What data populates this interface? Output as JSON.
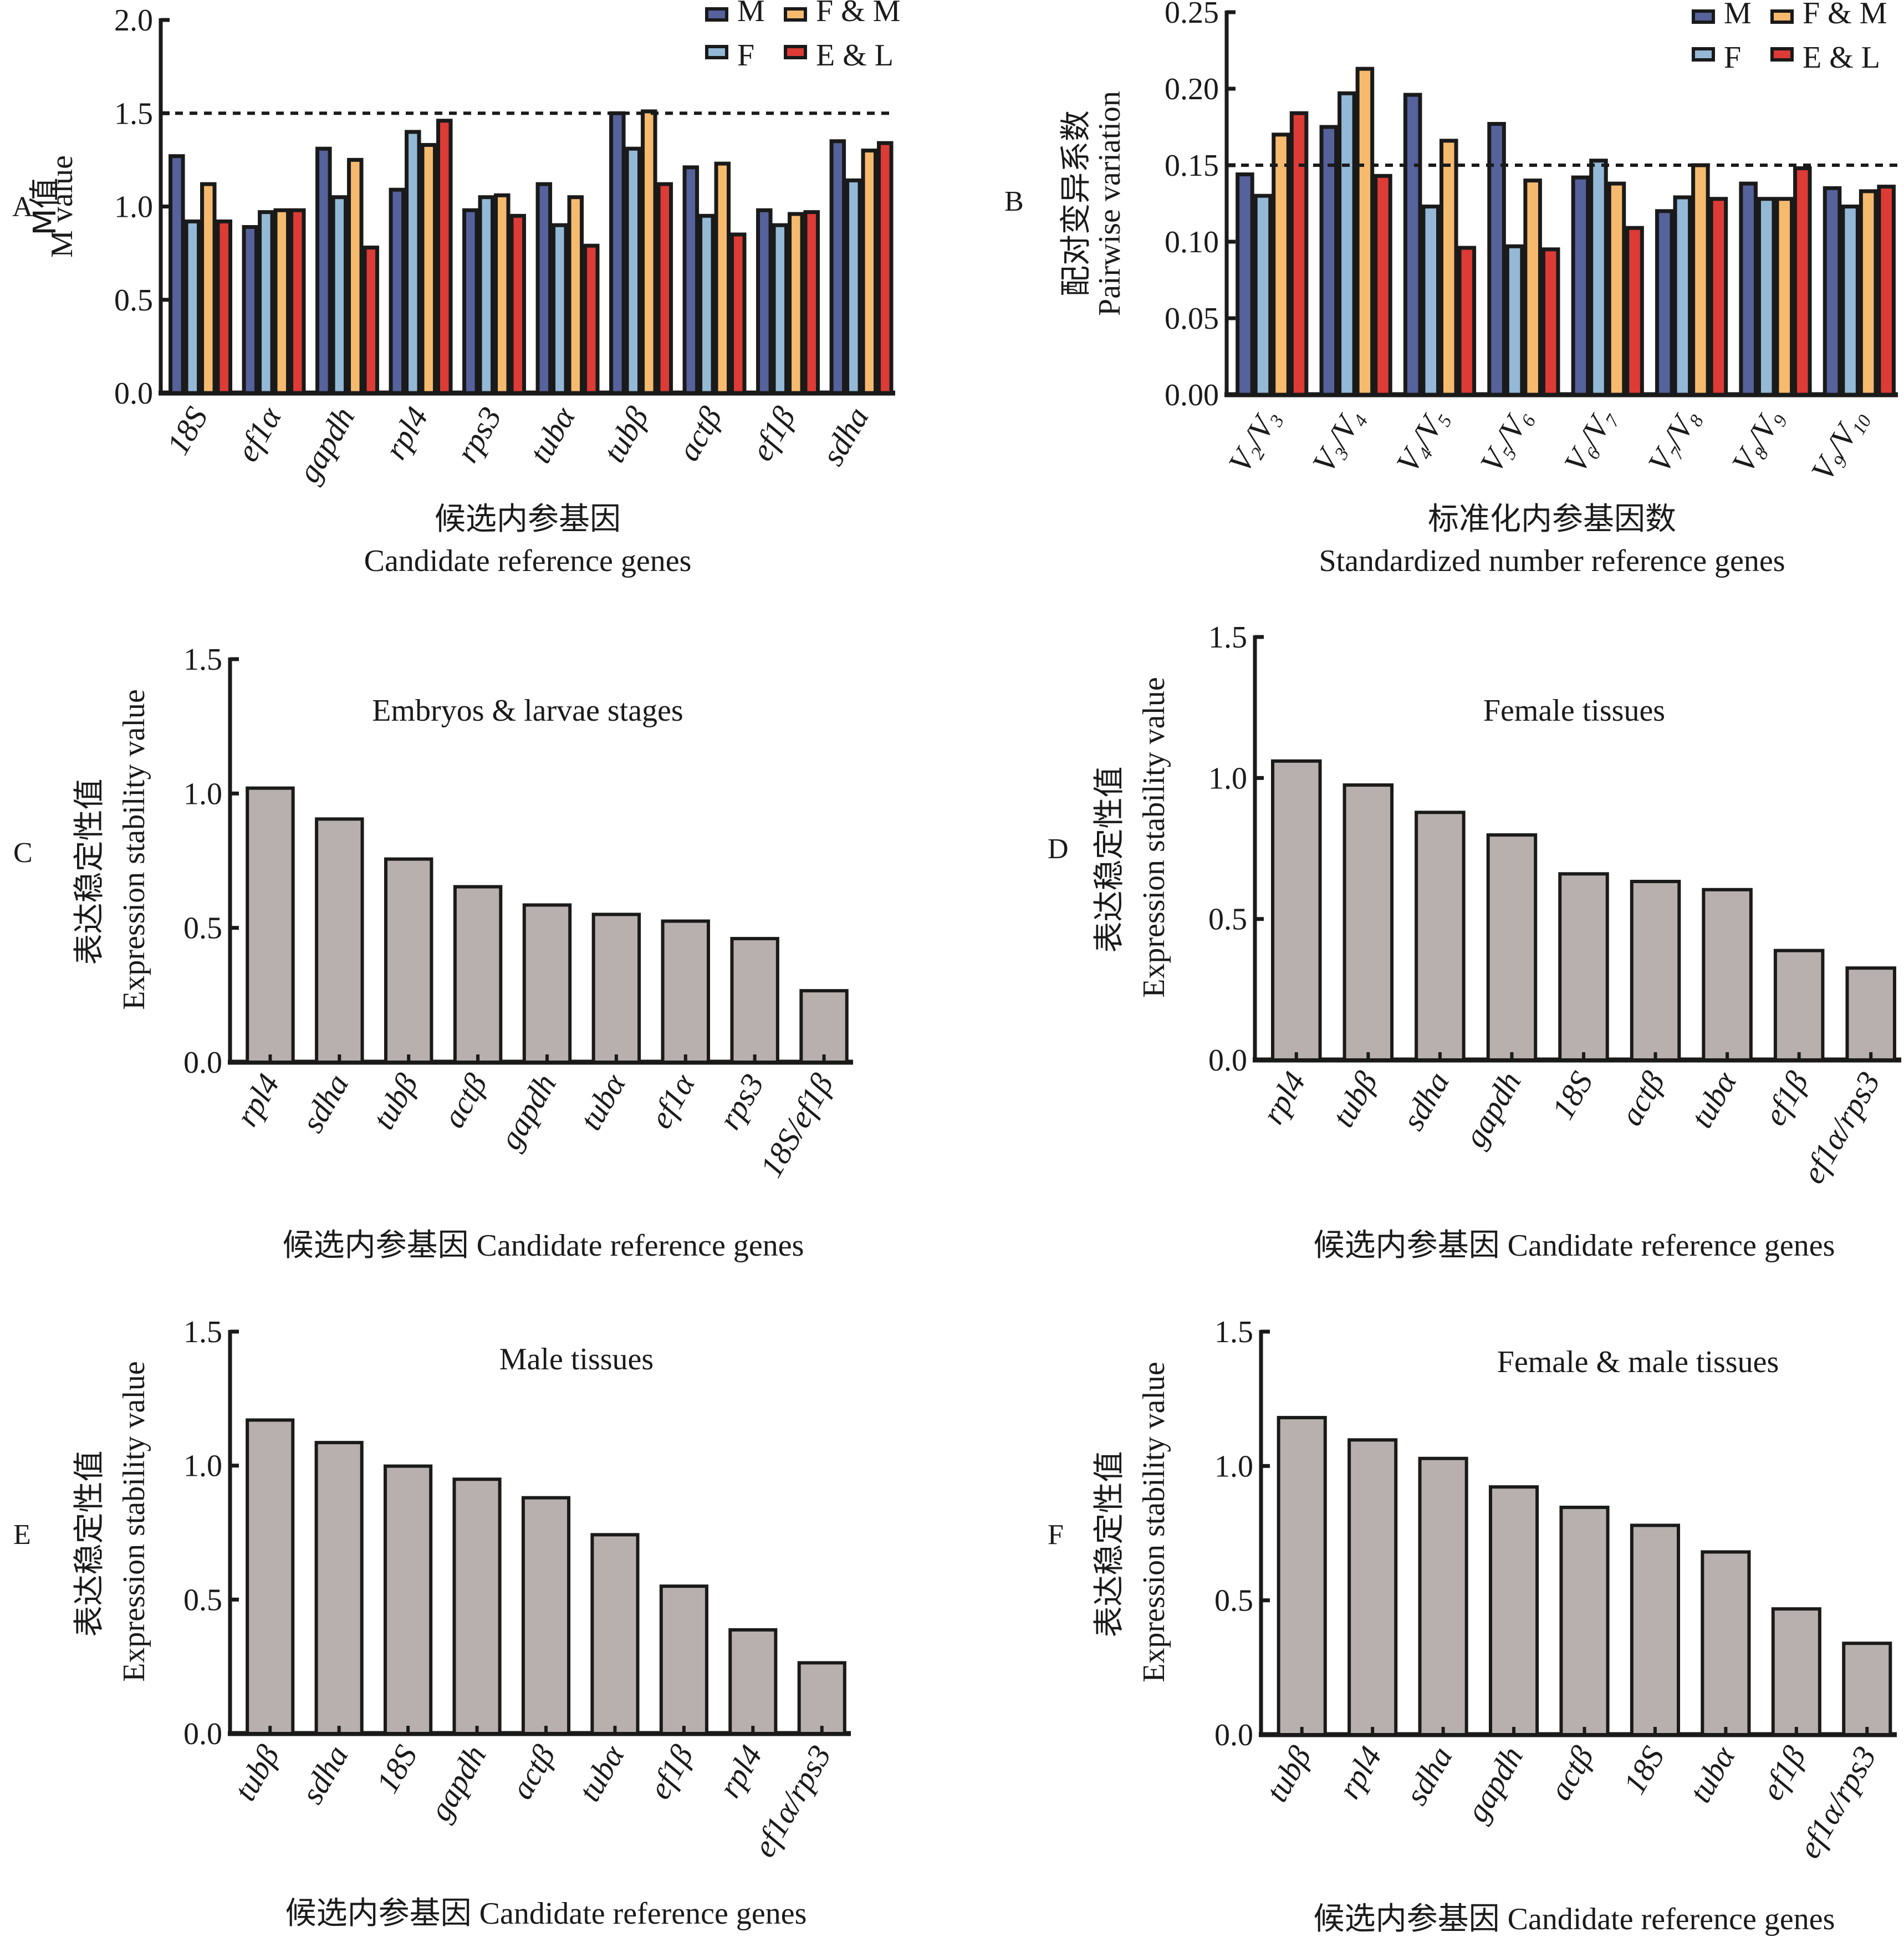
{
  "colors": {
    "M": "#56629c",
    "F": "#93b9d6",
    "F&M": "#f6ba6f",
    "E&L": "#dd3b36",
    "gray_bar": "#b8b0ae",
    "outline": "#1a1a1a"
  },
  "chart_data": [
    {
      "id": "A",
      "panel_letter": "A",
      "type": "bar",
      "grouped": true,
      "title": "",
      "ylabel_cn": "M值",
      "ylabel_en": "M value",
      "xlabel_cn": "候选内参基因",
      "xlabel_en": "Candidate reference genes",
      "ylim": [
        0,
        2.0
      ],
      "yticks": [
        0.0,
        0.5,
        1.0,
        1.5,
        2.0
      ],
      "ytick_labels": [
        "0.0",
        "0.5",
        "1.0",
        "1.5",
        "2.0"
      ],
      "threshold": 1.5,
      "legend": [
        "M",
        "F",
        "F & M",
        "E & L"
      ],
      "legend_position": "top-right",
      "categories": [
        "18S",
        "ef1α",
        "gapdh",
        "rpl4",
        "rps3",
        "tubα",
        "tubβ",
        "actβ",
        "ef1β",
        "sdha"
      ],
      "series": [
        {
          "name": "M",
          "key": "M",
          "values": [
            1.27,
            0.89,
            1.31,
            1.09,
            0.98,
            1.12,
            1.5,
            1.21,
            0.98,
            1.35
          ]
        },
        {
          "name": "F",
          "key": "F",
          "values": [
            0.92,
            0.97,
            1.05,
            1.4,
            1.05,
            0.9,
            1.31,
            0.95,
            0.9,
            1.14
          ]
        },
        {
          "name": "F & M",
          "key": "F&M",
          "values": [
            1.12,
            0.98,
            1.25,
            1.33,
            1.06,
            1.05,
            1.51,
            1.23,
            0.96,
            1.3
          ]
        },
        {
          "name": "E & L",
          "key": "E&L",
          "values": [
            0.92,
            0.98,
            0.78,
            1.46,
            0.95,
            0.79,
            1.12,
            0.85,
            0.97,
            1.34
          ]
        }
      ]
    },
    {
      "id": "B",
      "panel_letter": "B",
      "type": "bar",
      "grouped": true,
      "title": "",
      "ylabel_cn": "配对变异系数",
      "ylabel_en": "Pairwise variation",
      "xlabel_cn": "标准化内参基因数",
      "xlabel_en": "Standardized number reference genes",
      "ylim": [
        0,
        0.25
      ],
      "yticks": [
        0.0,
        0.05,
        0.1,
        0.15,
        0.2,
        0.25
      ],
      "ytick_labels": [
        "0.00",
        "0.05",
        "0.10",
        "0.15",
        "0.20",
        "0.25"
      ],
      "threshold": 0.15,
      "legend": [
        "M",
        "F",
        "F & M",
        "E & L"
      ],
      "legend_position": "top-right",
      "categories": [
        "V2/V3",
        "V3/V4",
        "V4/V5",
        "V5/V6",
        "V6/V7",
        "V7/V8",
        "V8/V9",
        "V9/V10"
      ],
      "category_parts": [
        [
          "2",
          "3"
        ],
        [
          "3",
          "4"
        ],
        [
          "4",
          "5"
        ],
        [
          "5",
          "6"
        ],
        [
          "6",
          "7"
        ],
        [
          "7",
          "8"
        ],
        [
          "8",
          "9"
        ],
        [
          "9",
          "10"
        ]
      ],
      "series": [
        {
          "name": "M",
          "key": "M",
          "values": [
            0.144,
            0.175,
            0.196,
            0.177,
            0.142,
            0.12,
            0.138,
            0.135
          ]
        },
        {
          "name": "F",
          "key": "F",
          "values": [
            0.13,
            0.197,
            0.123,
            0.097,
            0.153,
            0.129,
            0.128,
            0.123
          ]
        },
        {
          "name": "F & M",
          "key": "F&M",
          "values": [
            0.17,
            0.213,
            0.166,
            0.14,
            0.138,
            0.15,
            0.128,
            0.133
          ]
        },
        {
          "name": "E & L",
          "key": "E&L",
          "values": [
            0.184,
            0.143,
            0.096,
            0.095,
            0.109,
            0.128,
            0.148,
            0.136
          ]
        }
      ]
    },
    {
      "id": "C",
      "panel_letter": "C",
      "type": "bar",
      "title": "Embryos & larvae stages",
      "ylabel_cn": "表达稳定性值",
      "ylabel_en": "Expression stability value",
      "xlabel": "候选内参基因  Candidate reference genes",
      "ylim": [
        0,
        1.5
      ],
      "yticks": [
        0.0,
        0.5,
        1.0,
        1.5
      ],
      "ytick_labels": [
        "0.0",
        "0.5",
        "1.0",
        "1.5"
      ],
      "categories": [
        "rpl4",
        "sdha",
        "tubβ",
        "actβ",
        "gapdh",
        "tubα",
        "ef1α",
        "rps3",
        "18S/ef1β"
      ],
      "values": [
        1.02,
        0.905,
        0.756,
        0.653,
        0.585,
        0.55,
        0.525,
        0.46,
        0.266
      ]
    },
    {
      "id": "D",
      "panel_letter": "D",
      "type": "bar",
      "title": "Female tissues",
      "ylabel_cn": "表达稳定性值",
      "ylabel_en": "Expression stability value",
      "xlabel": "候选内参基因  Candidate reference genes",
      "ylim": [
        0,
        1.5
      ],
      "yticks": [
        0.0,
        0.5,
        1.0,
        1.5
      ],
      "ytick_labels": [
        "0.0",
        "0.5",
        "1.0",
        "1.5"
      ],
      "categories": [
        "rpl4",
        "tubβ",
        "sdha",
        "gapdh",
        "18S",
        "actβ",
        "tubα",
        "ef1β",
        "ef1α/rps3"
      ],
      "values": [
        1.06,
        0.975,
        0.878,
        0.798,
        0.66,
        0.633,
        0.604,
        0.388,
        0.326
      ]
    },
    {
      "id": "E",
      "panel_letter": "E",
      "type": "bar",
      "title": "Male tissues",
      "ylabel_cn": "表达稳定性值",
      "ylabel_en": "Expression stability value",
      "xlabel": "候选内参基因 Candidate reference genes",
      "ylim": [
        0,
        1.5
      ],
      "yticks": [
        0.0,
        0.5,
        1.0,
        1.5
      ],
      "ytick_labels": [
        "0.0",
        "0.5",
        "1.0",
        "1.5"
      ],
      "categories": [
        "tubβ",
        "sdha",
        "18S",
        "gapdh",
        "actβ",
        "tubα",
        "ef1β",
        "rpl4",
        "ef1α/rps3"
      ],
      "values": [
        1.17,
        1.086,
        0.998,
        0.949,
        0.88,
        0.742,
        0.55,
        0.387,
        0.264
      ]
    },
    {
      "id": "F",
      "panel_letter": "F",
      "type": "bar",
      "title": "Female & male tissues",
      "ylabel_cn": "表达稳定性值",
      "ylabel_en": "Expression stability value",
      "xlabel": "候选内参基因 Candidate reference genes",
      "ylim": [
        0,
        1.5
      ],
      "yticks": [
        0.0,
        0.5,
        1.0,
        1.5
      ],
      "ytick_labels": [
        "0.0",
        "0.5",
        "1.0",
        "1.5"
      ],
      "categories": [
        "tubβ",
        "rpl4",
        "sdha",
        "gapdh",
        "actβ",
        "18S",
        "tubα",
        "ef1β",
        "ef1α/rps3"
      ],
      "values": [
        1.18,
        1.097,
        1.028,
        0.922,
        0.846,
        0.779,
        0.68,
        0.468,
        0.34
      ]
    }
  ]
}
